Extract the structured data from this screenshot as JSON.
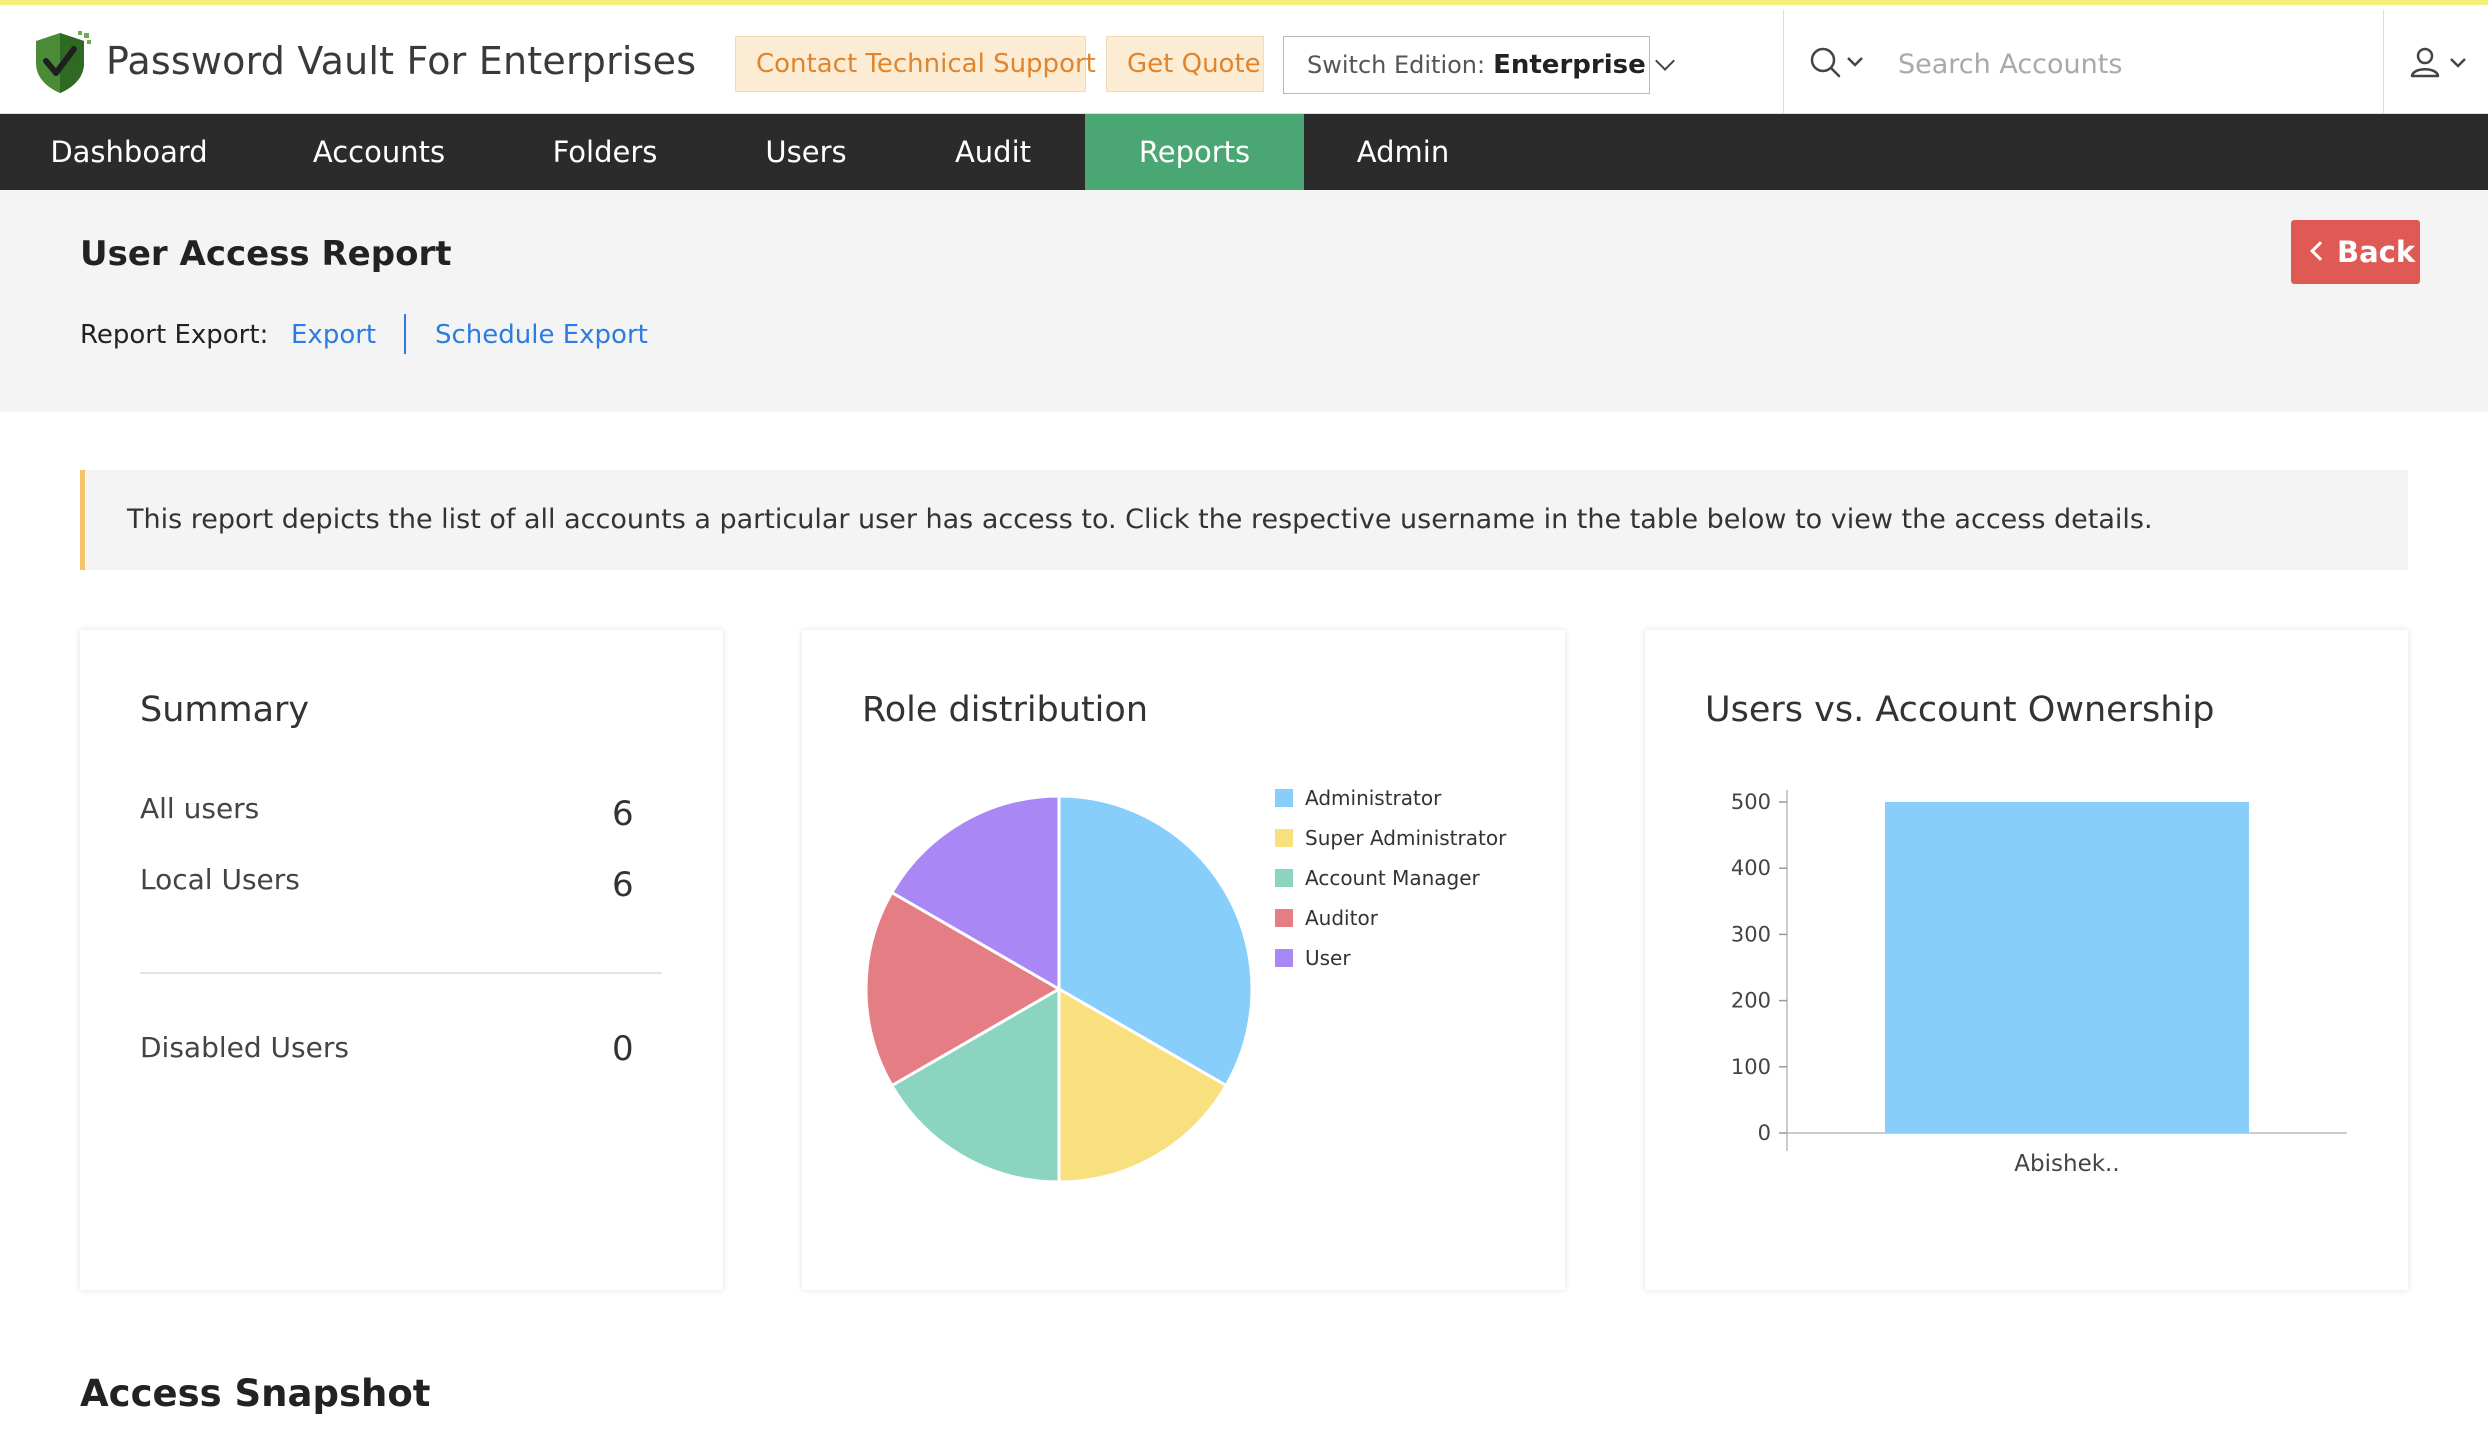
{
  "header": {
    "app_title": "Password Vault For Enterprises",
    "contact_support_label": "Contact Technical Support",
    "get_quote_label": "Get Quote",
    "switch_edition_label": "Switch Edition:",
    "edition_value": "Enterprise",
    "search_placeholder": "Search Accounts"
  },
  "nav": {
    "items": [
      {
        "label": "Dashboard"
      },
      {
        "label": "Accounts"
      },
      {
        "label": "Folders"
      },
      {
        "label": "Users"
      },
      {
        "label": "Audit"
      },
      {
        "label": "Reports",
        "active": true
      },
      {
        "label": "Admin"
      }
    ]
  },
  "report": {
    "title": "User Access Report",
    "export_label": "Report Export:",
    "export_link": "Export",
    "schedule_export_link": "Schedule Export",
    "back_label": "Back",
    "info_text": "This report depicts the list of all accounts a particular user has access to. Click the respective username in the table below to view the access details."
  },
  "summary": {
    "title": "Summary",
    "rows": [
      {
        "label": "All users",
        "value": "6"
      },
      {
        "label": "Local Users",
        "value": "6"
      },
      {
        "label": "Disabled Users",
        "value": "0"
      }
    ]
  },
  "chart_data": [
    {
      "type": "pie",
      "title": "Role distribution",
      "categories": [
        "Administrator",
        "Super Administrator",
        "Account Manager",
        "Auditor",
        "User"
      ],
      "values": [
        2,
        1,
        1,
        1,
        1
      ],
      "colors": [
        "#87cefa",
        "#f9e07e",
        "#8bd5c0",
        "#e57d84",
        "#a988f5"
      ],
      "legend_position": "right"
    },
    {
      "type": "bar",
      "title": "Users vs. Account Ownership",
      "categories": [
        "Abishek.."
      ],
      "values": [
        500
      ],
      "ylim": [
        0,
        500
      ],
      "yticks": [
        0,
        100,
        200,
        300,
        400,
        500
      ],
      "color": "#87cefa"
    }
  ],
  "section": {
    "access_snapshot_title": "Access Snapshot"
  },
  "colors": {
    "nav_bg": "#2b2b2b",
    "nav_active": "#4aa774",
    "back_button": "#e05a55",
    "link": "#2d7ce0",
    "header_button_bg": "#fdecd4",
    "header_button_text": "#e0852d"
  }
}
